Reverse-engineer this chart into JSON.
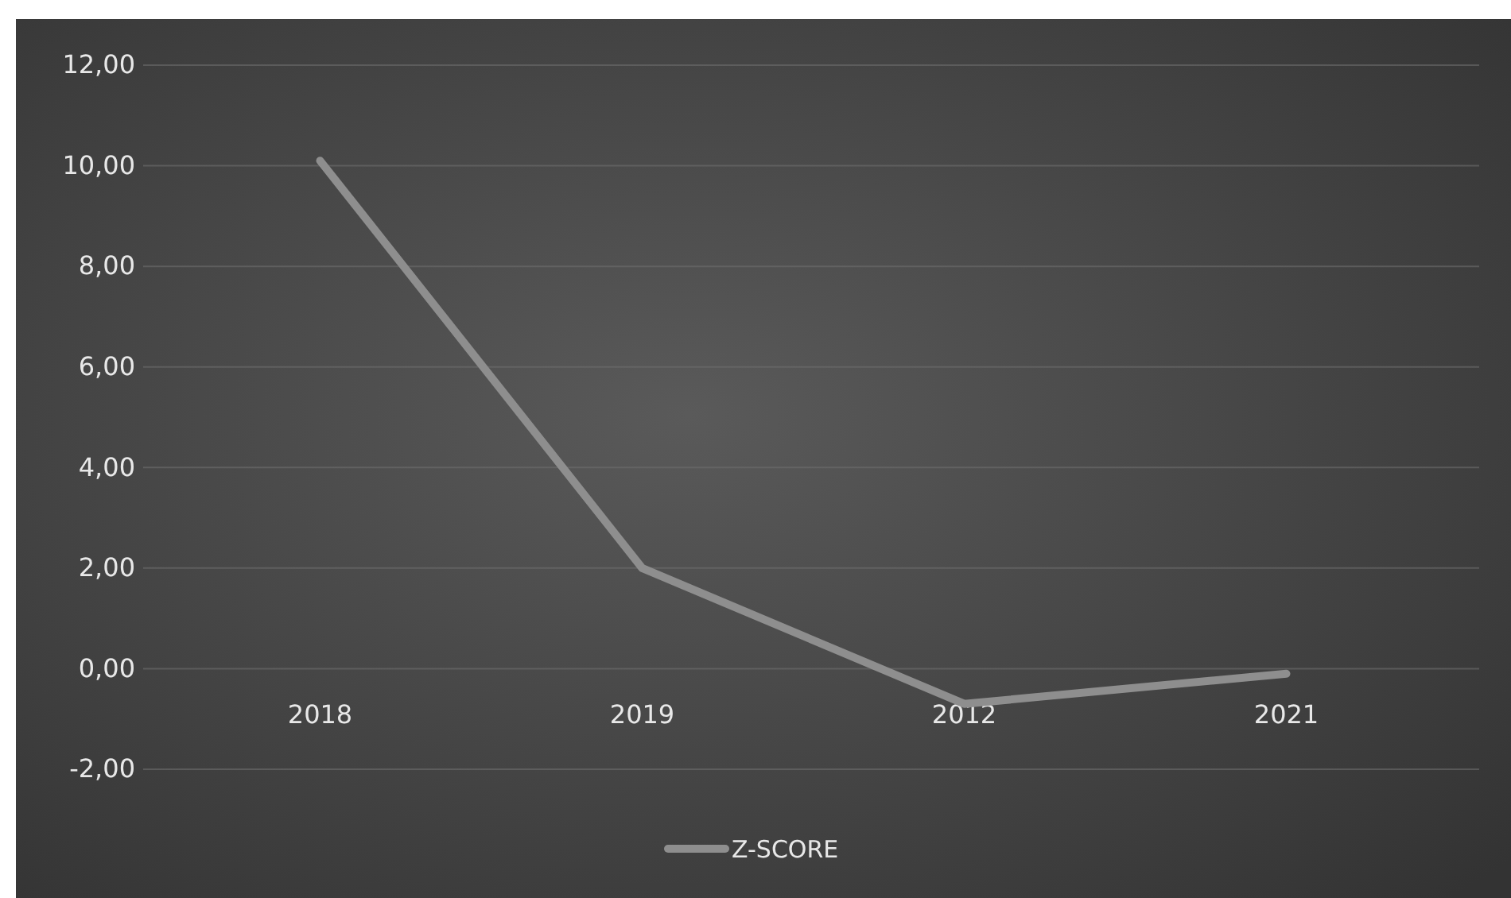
{
  "chart_data": {
    "type": "line",
    "categories": [
      "2018",
      "2019",
      "2012",
      "2021"
    ],
    "series": [
      {
        "name": "Z-SCORE",
        "color": "#8e8e8e",
        "values": [
          10.1,
          2.0,
          -0.7,
          -0.1
        ]
      }
    ],
    "ylim": [
      -2,
      12
    ],
    "yticks": [
      {
        "value": -2,
        "label": "-2,00"
      },
      {
        "value": 0,
        "label": "0,00"
      },
      {
        "value": 2,
        "label": "2,00"
      },
      {
        "value": 4,
        "label": "4,00"
      },
      {
        "value": 6,
        "label": "6,00"
      },
      {
        "value": 8,
        "label": "8,00"
      },
      {
        "value": 10,
        "label": "10,00"
      },
      {
        "value": 12,
        "label": "12,00"
      }
    ],
    "grid": "y",
    "legend": "bottom",
    "marker": "none",
    "line_style": "solid"
  }
}
